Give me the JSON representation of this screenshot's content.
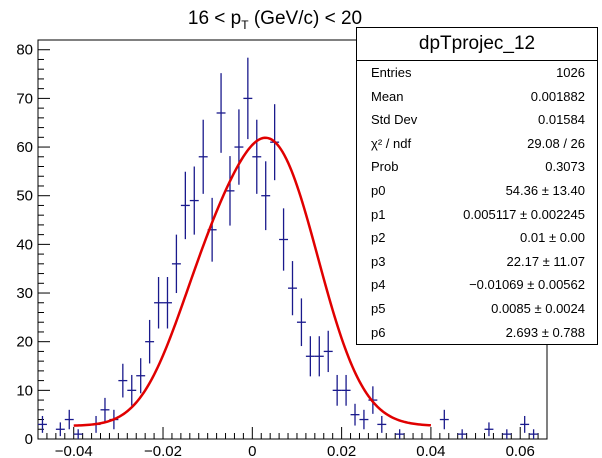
{
  "colors": {
    "data": "#1a1a8c",
    "fit": "#e00000",
    "axis": "#000000",
    "background": "#ffffff"
  },
  "title": {
    "prefix": "16 < p",
    "sub": "T",
    "suffix": " (GeV/c) < 20"
  },
  "stats": {
    "name": "dpTprojec_12",
    "rows": [
      {
        "key": "Entries",
        "value": "1026"
      },
      {
        "key": "Mean",
        "value": "0.001882"
      },
      {
        "key": "Std Dev",
        "value": "0.01584"
      },
      {
        "key": "χ² / ndf",
        "value": "29.08 / 26"
      },
      {
        "key": "Prob",
        "value": "0.3073"
      },
      {
        "key": "p0",
        "value": "54.36 ± 13.40"
      },
      {
        "key": "p1",
        "value": "0.005117 ± 0.002245"
      },
      {
        "key": "p2",
        "value": "0.01 ± 0.00"
      },
      {
        "key": "p3",
        "value": "22.17 ± 11.07"
      },
      {
        "key": "p4",
        "value": "−0.01069 ± 0.00562"
      },
      {
        "key": "p5",
        "value": "0.0085 ± 0.0024"
      },
      {
        "key": "p6",
        "value": "2.693 ± 0.788"
      }
    ]
  },
  "chart_data": {
    "type": "scatter",
    "title": "16 < p_T (GeV/c) < 20",
    "xlabel": "",
    "ylabel": "",
    "xlim": [
      -0.048,
      0.066
    ],
    "ylim": [
      0,
      82
    ],
    "bin_width": 0.002,
    "xticks": [
      "−0.04",
      "−0.02",
      "0",
      "0.02",
      "0.04",
      "0.06"
    ],
    "xtick_values": [
      -0.04,
      -0.02,
      0,
      0.02,
      0.04,
      0.06
    ],
    "yticks": [
      "0",
      "10",
      "20",
      "30",
      "40",
      "50",
      "60",
      "70",
      "80"
    ],
    "ytick_values": [
      0,
      10,
      20,
      30,
      40,
      50,
      60,
      70,
      80
    ],
    "series": [
      {
        "marker": "cross-with-error-bars",
        "points": [
          {
            "x": -0.047,
            "y": 3
          },
          {
            "x": -0.043,
            "y": 2
          },
          {
            "x": -0.041,
            "y": 4
          },
          {
            "x": -0.039,
            "y": 1
          },
          {
            "x": -0.035,
            "y": 3
          },
          {
            "x": -0.033,
            "y": 6
          },
          {
            "x": -0.031,
            "y": 4
          },
          {
            "x": -0.029,
            "y": 12
          },
          {
            "x": -0.027,
            "y": 10
          },
          {
            "x": -0.025,
            "y": 13
          },
          {
            "x": -0.023,
            "y": 20
          },
          {
            "x": -0.021,
            "y": 28
          },
          {
            "x": -0.019,
            "y": 28
          },
          {
            "x": -0.017,
            "y": 36
          },
          {
            "x": -0.015,
            "y": 48
          },
          {
            "x": -0.013,
            "y": 49
          },
          {
            "x": -0.011,
            "y": 58
          },
          {
            "x": -0.009,
            "y": 43
          },
          {
            "x": -0.007,
            "y": 67
          },
          {
            "x": -0.005,
            "y": 51
          },
          {
            "x": -0.003,
            "y": 60
          },
          {
            "x": -0.001,
            "y": 70
          },
          {
            "x": 0.001,
            "y": 58
          },
          {
            "x": 0.003,
            "y": 50
          },
          {
            "x": 0.005,
            "y": 61
          },
          {
            "x": 0.007,
            "y": 41
          },
          {
            "x": 0.009,
            "y": 31
          },
          {
            "x": 0.011,
            "y": 24
          },
          {
            "x": 0.013,
            "y": 17
          },
          {
            "x": 0.015,
            "y": 17
          },
          {
            "x": 0.017,
            "y": 18
          },
          {
            "x": 0.019,
            "y": 10
          },
          {
            "x": 0.021,
            "y": 10
          },
          {
            "x": 0.023,
            "y": 5
          },
          {
            "x": 0.025,
            "y": 4
          },
          {
            "x": 0.027,
            "y": 8
          },
          {
            "x": 0.029,
            "y": 3
          },
          {
            "x": 0.033,
            "y": 1
          },
          {
            "x": 0.043,
            "y": 4
          },
          {
            "x": 0.047,
            "y": 1
          },
          {
            "x": 0.053,
            "y": 2
          },
          {
            "x": 0.057,
            "y": 1
          },
          {
            "x": 0.061,
            "y": 3
          },
          {
            "x": 0.063,
            "y": 1
          }
        ]
      },
      {
        "marker": "line",
        "function": "gaussian + background",
        "x_range": [
          -0.04,
          0.04
        ],
        "params": {
          "p0": 54.36,
          "p1": 0.005117,
          "p2": 0.01,
          "p3": 22.17,
          "p4": -0.01069,
          "p5": 0.0085,
          "p6": 2.693
        }
      }
    ],
    "legend": "stats box top-right",
    "grid": false
  }
}
